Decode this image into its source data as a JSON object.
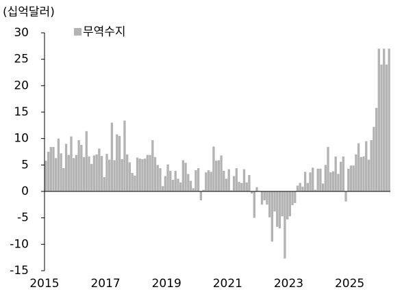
{
  "chart_data": {
    "type": "bar",
    "y_label": "(십억달러)",
    "categories": [
      "2015",
      null,
      null,
      null,
      null,
      null,
      null,
      null,
      null,
      null,
      null,
      null,
      null,
      null,
      null,
      null,
      null,
      null,
      null,
      null,
      null,
      null,
      null,
      null,
      "2017",
      null,
      null,
      null,
      null,
      null,
      null,
      null,
      null,
      null,
      null,
      null,
      null,
      null,
      null,
      null,
      null,
      null,
      null,
      null,
      null,
      null,
      null,
      null,
      "2019",
      null,
      null,
      null,
      null,
      null,
      null,
      null,
      null,
      null,
      null,
      null,
      null,
      null,
      null,
      null,
      null,
      null,
      null,
      null,
      null,
      null,
      null,
      null,
      "2021",
      null,
      null,
      null,
      null,
      null,
      null,
      null,
      null,
      null,
      null,
      null,
      null,
      null,
      null,
      null,
      null,
      null,
      null,
      null,
      null,
      null,
      null,
      null,
      "2023",
      null,
      null,
      null,
      null,
      null,
      null,
      null,
      null,
      null,
      null,
      null,
      null,
      null,
      null,
      null,
      null,
      null,
      null,
      null,
      null,
      null,
      null,
      null,
      "2025",
      null,
      null,
      null,
      null,
      null,
      null,
      null,
      null,
      null,
      null,
      null,
      null,
      null,
      null,
      null
    ],
    "series": [
      {
        "name": "무역수지",
        "color": "#b3b3b3",
        "values": [
          5.8,
          7.5,
          8.4,
          8.4,
          6.3,
          10.0,
          7.2,
          4.4,
          9.0,
          6.9,
          10.4,
          6.3,
          6.9,
          9.7,
          8.8,
          6.5,
          11.4,
          6.6,
          5.2,
          6.8,
          7.0,
          8.1,
          6.7,
          2.7,
          7.1,
          6.0,
          13.0,
          5.9,
          10.8,
          10.5,
          6.1,
          13.4,
          7.0,
          5.5,
          3.5,
          3.0,
          6.4,
          6.2,
          6.1,
          6.2,
          6.9,
          6.9,
          9.7,
          6.5,
          5.0,
          4.4,
          1.0,
          2.9,
          5.1,
          3.9,
          2.2,
          3.9,
          2.4,
          1.7,
          5.9,
          5.4,
          3.3,
          2.0,
          0.6,
          4.0,
          4.4,
          -1.7,
          0.3,
          3.6,
          4.0,
          3.7,
          8.5,
          5.8,
          5.9,
          6.8,
          3.9,
          2.4,
          4.2,
          0.2,
          2.9,
          4.4,
          1.8,
          1.6,
          4.2,
          1.7,
          3.1,
          -0.4,
          -5.0,
          0.8,
          0.1,
          -2.5,
          -1.7,
          -2.5,
          -4.9,
          -9.5,
          -3.8,
          -6.7,
          -7.0,
          -4.7,
          -12.7,
          -5.3,
          -4.7,
          -2.6,
          -2.2,
          1.1,
          1.6,
          0.9,
          3.7,
          1.6,
          3.6,
          4.5,
          0.3,
          4.3,
          4.3,
          1.5,
          5.0,
          8.4,
          3.6,
          3.8,
          6.6,
          3.3,
          5.6,
          6.6,
          -1.9,
          4.3,
          4.9,
          4.9,
          7.0,
          9.1,
          6.5,
          6.6,
          9.5,
          6.0,
          9.7,
          12.2,
          15.8,
          27.0,
          24.0,
          27.0,
          24.0,
          27.0
        ]
      }
    ],
    "ylim": [
      -15,
      30
    ],
    "yticks": [
      -15,
      -10,
      -5,
      0,
      5,
      10,
      15,
      20,
      25,
      30
    ],
    "legend": "top-left"
  }
}
